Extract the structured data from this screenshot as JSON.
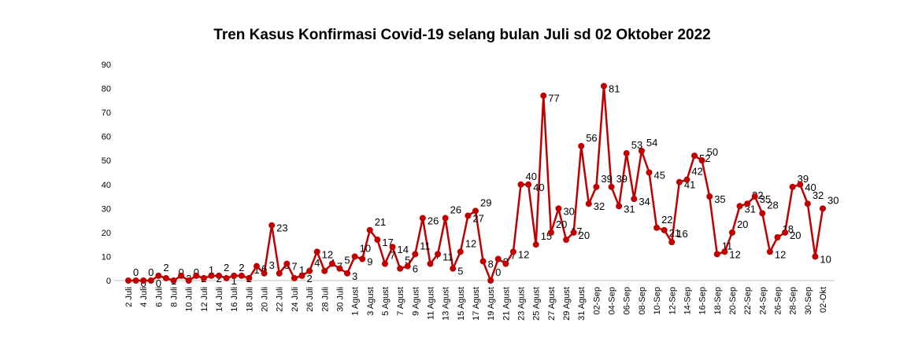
{
  "chart_data": {
    "type": "line",
    "title": "Tren Kasus Konfirmasi Covid-19 selang bulan Juli  sd  02 Oktober 2022",
    "categories": [
      "2 Juli",
      null,
      "4 Juli",
      null,
      "6 Juli",
      null,
      "8 Juli",
      null,
      "10 Juli",
      null,
      "12 Juli",
      null,
      "14 Juli",
      null,
      "16 Juli",
      null,
      "18 Juli",
      null,
      "20 Juli",
      null,
      "22 Juli",
      null,
      "24 Juli",
      null,
      "26 Juli",
      null,
      "28 Juli",
      null,
      "30 Juli",
      null,
      "1 Agust",
      null,
      "3 Agust",
      null,
      "5 Agust",
      null,
      "7 Agust",
      null,
      "9 Agust",
      null,
      "11 Agust",
      null,
      "13 Agust",
      null,
      "15 Agust",
      null,
      "17 Agust",
      null,
      "19 Agust",
      null,
      "21 Agust",
      null,
      "23 Agust",
      null,
      "25 Agust",
      null,
      "27 Agust",
      null,
      "29 Agust",
      null,
      "31 Agust",
      null,
      "02-Sep",
      null,
      "04-Sep",
      null,
      "06-Sep",
      null,
      "08-Sep",
      null,
      "10-Sep",
      null,
      "12-Sep",
      null,
      "14-Sep",
      null,
      "16-Sep",
      null,
      "18-Sep",
      null,
      "20-Sep",
      null,
      "22-Sep",
      null,
      "24-Sep",
      null,
      "26-Sep",
      null,
      "28-Sep",
      null,
      "30-Sep",
      null,
      "02-Okt"
    ],
    "series": [
      {
        "name": "Kasus",
        "color": "#c00000",
        "values": [
          0,
          0,
          0,
          0,
          2,
          1,
          0,
          2,
          0,
          2,
          1,
          2,
          2,
          1,
          2,
          2,
          1,
          6,
          3,
          23,
          3,
          7,
          1,
          2,
          4,
          12,
          4,
          7,
          5,
          3,
          10,
          9,
          21,
          17,
          7,
          14,
          5,
          6,
          11,
          26,
          7,
          11,
          26,
          5,
          12,
          27,
          29,
          8,
          0,
          9,
          7,
          12,
          40,
          40,
          15,
          77,
          20,
          30,
          17,
          20,
          56,
          32,
          39,
          81,
          39,
          31,
          53,
          34,
          54,
          45,
          22,
          21,
          16,
          41,
          42,
          52,
          50,
          35,
          11,
          12,
          20,
          31,
          32,
          35,
          28,
          12,
          18,
          20,
          39,
          40,
          32,
          10,
          30
        ]
      }
    ],
    "ylim": [
      0,
      90
    ],
    "yticks": [
      0,
      10,
      20,
      30,
      40,
      50,
      60,
      70,
      80,
      90
    ],
    "grid": false
  }
}
